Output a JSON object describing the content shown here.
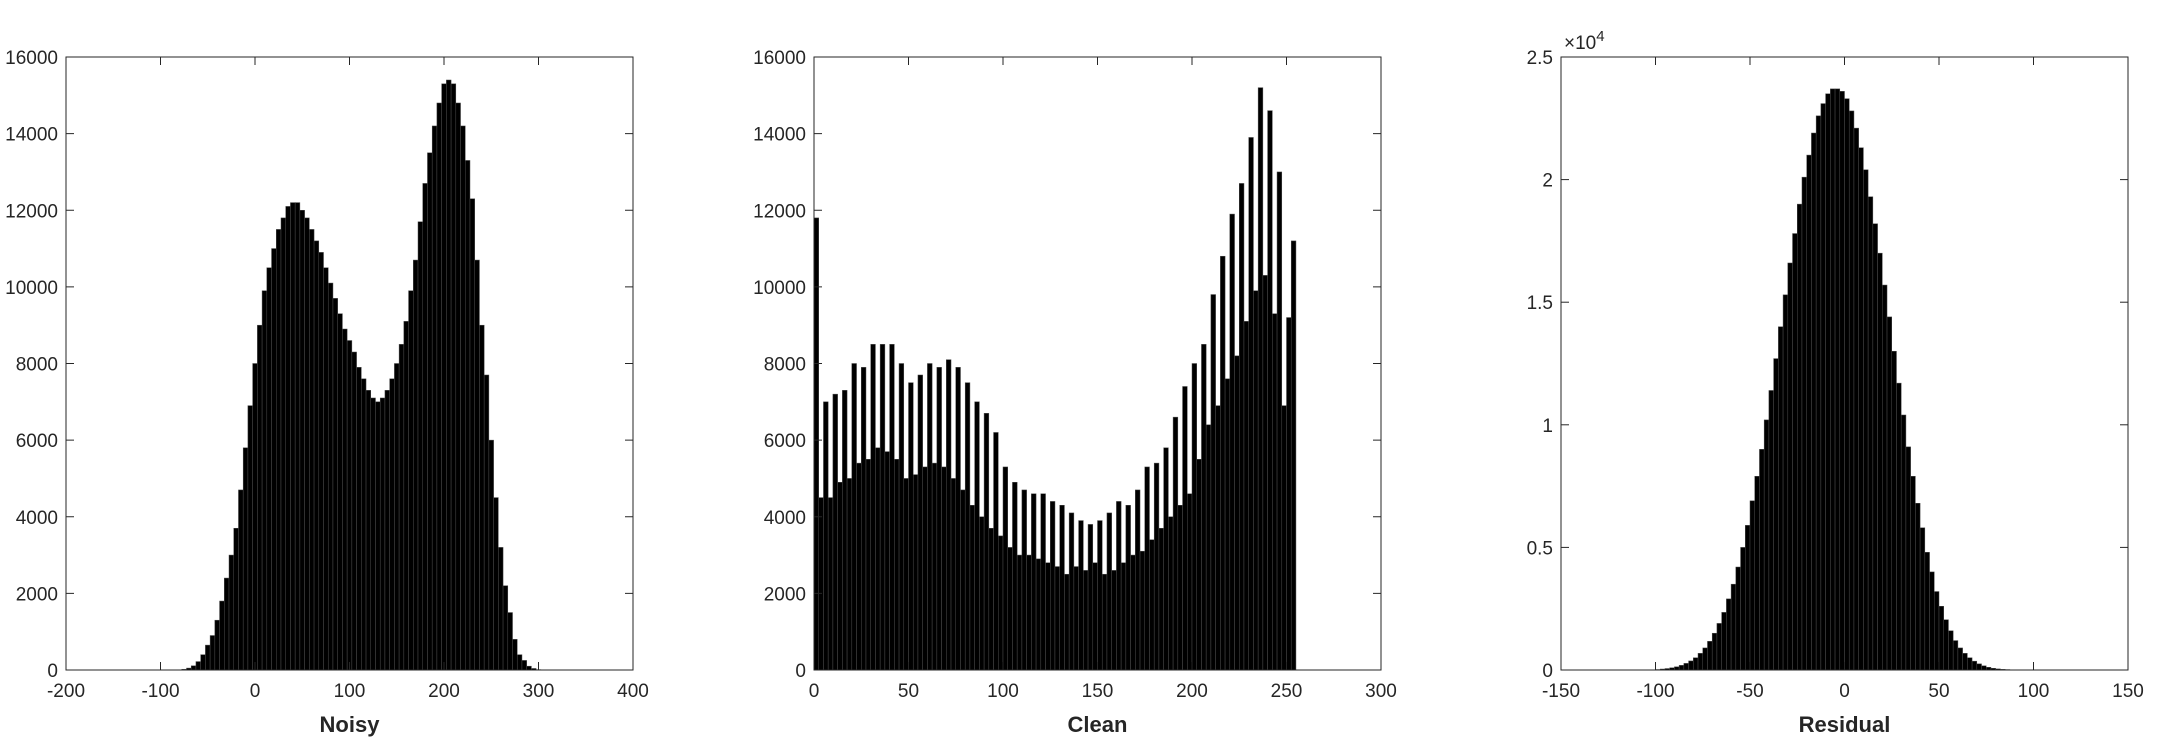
{
  "chart_data": [
    {
      "type": "bar",
      "xlabel": "Noisy",
      "xlim": [
        -200,
        400
      ],
      "ylim": [
        0,
        16000
      ],
      "xticks": [
        -200,
        -100,
        0,
        100,
        200,
        300,
        400
      ],
      "yticks": [
        0,
        2000,
        4000,
        6000,
        8000,
        10000,
        12000,
        14000,
        16000
      ],
      "xtick_labels": [
        "-200",
        "-100",
        "0",
        "100",
        "200",
        "300",
        "400"
      ],
      "ytick_labels": [
        "0",
        "2000",
        "4000",
        "6000",
        "8000",
        "10000",
        "12000",
        "14000",
        "16000"
      ],
      "bar_color": "#000000",
      "bin_width": 5,
      "x": [
        -75,
        -70,
        -65,
        -60,
        -55,
        -50,
        -45,
        -40,
        -35,
        -30,
        -25,
        -20,
        -15,
        -10,
        -5,
        0,
        5,
        10,
        15,
        20,
        25,
        30,
        35,
        40,
        45,
        50,
        55,
        60,
        65,
        70,
        75,
        80,
        85,
        90,
        95,
        100,
        105,
        110,
        115,
        120,
        125,
        130,
        135,
        140,
        145,
        150,
        155,
        160,
        165,
        170,
        175,
        180,
        185,
        190,
        195,
        200,
        205,
        210,
        215,
        220,
        225,
        230,
        235,
        240,
        245,
        250,
        255,
        260,
        265,
        270,
        275,
        280,
        285,
        290,
        295,
        300,
        305,
        310,
        315,
        320,
        325,
        330
      ],
      "values": [
        20,
        50,
        110,
        220,
        400,
        650,
        900,
        1300,
        1800,
        2400,
        3000,
        3700,
        4700,
        5800,
        6900,
        8000,
        9000,
        9900,
        10500,
        11000,
        11500,
        11800,
        12100,
        12200,
        12200,
        12000,
        11800,
        11500,
        11200,
        10900,
        10500,
        10100,
        9700,
        9300,
        8900,
        8600,
        8300,
        7900,
        7600,
        7300,
        7100,
        7000,
        7100,
        7300,
        7600,
        8000,
        8500,
        9100,
        9900,
        10700,
        11700,
        12700,
        13500,
        14200,
        14800,
        15300,
        15400,
        15300,
        14800,
        14200,
        13300,
        12300,
        10700,
        9000,
        7700,
        6000,
        4500,
        3200,
        2200,
        1500,
        800,
        400,
        250,
        100,
        40,
        10,
        0,
        0,
        0,
        0,
        0,
        0
      ]
    },
    {
      "type": "bar",
      "xlabel": "Clean",
      "xlim": [
        0,
        300
      ],
      "ylim": [
        0,
        16000
      ],
      "xticks": [
        0,
        50,
        100,
        150,
        200,
        250,
        300
      ],
      "yticks": [
        0,
        2000,
        4000,
        6000,
        8000,
        10000,
        12000,
        14000,
        16000
      ],
      "xtick_labels": [
        "0",
        "50",
        "100",
        "150",
        "200",
        "250",
        "300"
      ],
      "ytick_labels": [
        "0",
        "2000",
        "4000",
        "6000",
        "8000",
        "10000",
        "12000",
        "14000",
        "16000"
      ],
      "bar_color": "#000000",
      "bin_width": 2.5,
      "x": [
        1.25,
        3.75,
        6.25,
        8.75,
        11.25,
        13.75,
        16.25,
        18.75,
        21.25,
        23.75,
        26.25,
        28.75,
        31.25,
        33.75,
        36.25,
        38.75,
        41.25,
        43.75,
        46.25,
        48.75,
        51.25,
        53.75,
        56.25,
        58.75,
        61.25,
        63.75,
        66.25,
        68.75,
        71.25,
        73.75,
        76.25,
        78.75,
        81.25,
        83.75,
        86.25,
        88.75,
        91.25,
        93.75,
        96.25,
        98.75,
        101.25,
        103.75,
        106.25,
        108.75,
        111.25,
        113.75,
        116.25,
        118.75,
        121.25,
        123.75,
        126.25,
        128.75,
        131.25,
        133.75,
        136.25,
        138.75,
        141.25,
        143.75,
        146.25,
        148.75,
        151.25,
        153.75,
        156.25,
        158.75,
        161.25,
        163.75,
        166.25,
        168.75,
        171.25,
        173.75,
        176.25,
        178.75,
        181.25,
        183.75,
        186.25,
        188.75,
        191.25,
        193.75,
        196.25,
        198.75,
        201.25,
        203.75,
        206.25,
        208.75,
        211.25,
        213.75,
        216.25,
        218.75,
        221.25,
        223.75,
        226.25,
        228.75,
        231.25,
        233.75,
        236.25,
        238.75,
        241.25,
        243.75,
        246.25,
        248.75,
        251.25,
        253.75
      ],
      "values": [
        11800,
        4500,
        7000,
        4500,
        7200,
        4900,
        7300,
        5000,
        8000,
        5400,
        7900,
        5500,
        8500,
        5800,
        8500,
        5700,
        8500,
        5500,
        8000,
        5000,
        7500,
        5100,
        7700,
        5300,
        8000,
        5400,
        7900,
        5300,
        8100,
        5000,
        7900,
        4700,
        7500,
        4300,
        7000,
        4000,
        6700,
        3700,
        6200,
        3500,
        5300,
        3200,
        4900,
        3000,
        4700,
        3000,
        4600,
        2900,
        4600,
        2800,
        4400,
        2700,
        4300,
        2500,
        4100,
        2700,
        3900,
        2600,
        3800,
        2800,
        3900,
        2500,
        4100,
        2600,
        4400,
        2800,
        4300,
        3000,
        4700,
        3100,
        5300,
        3400,
        5400,
        3700,
        5800,
        4000,
        6600,
        4300,
        7400,
        4600,
        8000,
        5500,
        8500,
        6400,
        9800,
        6900,
        10800,
        7600,
        11900,
        8200,
        12700,
        9100,
        13900,
        9900,
        15200,
        10300,
        14600,
        9300,
        13000,
        6900,
        9200,
        11200
      ]
    },
    {
      "type": "bar",
      "xlabel": "Residual",
      "xlim": [
        -150,
        150
      ],
      "ylim": [
        0,
        25000
      ],
      "xticks": [
        -150,
        -100,
        -50,
        0,
        50,
        100,
        150
      ],
      "yticks": [
        0,
        5000,
        10000,
        15000,
        20000,
        25000
      ],
      "xtick_labels": [
        "-150",
        "-100",
        "-50",
        "0",
        "50",
        "100",
        "150"
      ],
      "ytick_labels": [
        "0",
        "0.5",
        "1",
        "1.5",
        "2",
        "2.5"
      ],
      "y_exponent_label": "×10",
      "y_exponent_power": "4",
      "bar_color": "#000000",
      "bin_width": 2.5,
      "x": [
        -101.25,
        -98.75,
        -96.25,
        -93.75,
        -91.25,
        -88.75,
        -86.25,
        -83.75,
        -81.25,
        -78.75,
        -76.25,
        -73.75,
        -71.25,
        -68.75,
        -66.25,
        -63.75,
        -61.25,
        -58.75,
        -56.25,
        -53.75,
        -51.25,
        -48.75,
        -46.25,
        -43.75,
        -41.25,
        -38.75,
        -36.25,
        -33.75,
        -31.25,
        -28.75,
        -26.25,
        -23.75,
        -21.25,
        -18.75,
        -16.25,
        -13.75,
        -11.25,
        -8.75,
        -6.25,
        -3.75,
        -1.25,
        1.25,
        3.75,
        6.25,
        8.75,
        11.25,
        13.75,
        16.25,
        18.75,
        21.25,
        23.75,
        26.25,
        28.75,
        31.25,
        33.75,
        36.25,
        38.75,
        41.25,
        43.75,
        46.25,
        48.75,
        51.25,
        53.75,
        56.25,
        58.75,
        61.25,
        63.75,
        66.25,
        68.75,
        71.25,
        73.75,
        76.25,
        78.75,
        81.25,
        83.75,
        86.25,
        88.75,
        91.25,
        93.75,
        96.25
      ],
      "values": [
        10,
        20,
        40,
        60,
        90,
        130,
        190,
        270,
        370,
        500,
        680,
        900,
        1170,
        1500,
        1900,
        2350,
        2900,
        3500,
        4200,
        5000,
        5900,
        6900,
        7900,
        9000,
        10200,
        11400,
        12700,
        14000,
        15300,
        16600,
        17800,
        19000,
        20100,
        21000,
        21900,
        22600,
        23100,
        23500,
        23700,
        23700,
        23600,
        23300,
        22800,
        22100,
        21300,
        20400,
        19300,
        18200,
        17000,
        15700,
        14400,
        13000,
        11700,
        10400,
        9100,
        7900,
        6800,
        5800,
        4800,
        4000,
        3200,
        2600,
        2050,
        1600,
        1200,
        900,
        680,
        500,
        360,
        250,
        170,
        110,
        70,
        45,
        28,
        18,
        10,
        6,
        3,
        1
      ]
    }
  ]
}
